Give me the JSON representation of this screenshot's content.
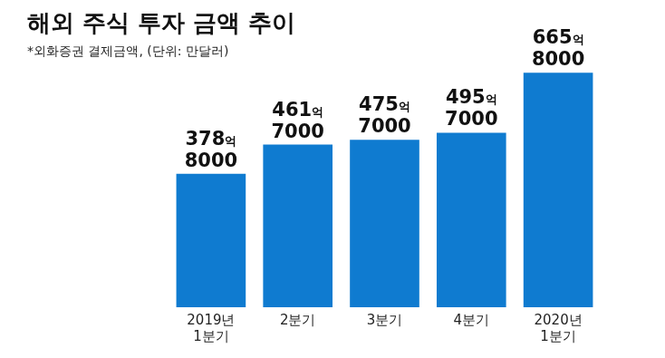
{
  "chart_data": {
    "type": "bar",
    "title": "해외 주식 투자 금액 추이",
    "subtitle": "*외화증권 결제금액, (단위: 만달러)",
    "categories": [
      "2019년 1분기",
      "2분기",
      "3분기",
      "4분기",
      "2020년 1분기"
    ],
    "values": [
      3788000,
      4617000,
      4757000,
      4957000,
      6658000
    ],
    "value_labels": [
      "378억 8000",
      "461억 7000",
      "475억 7000",
      "495억 7000",
      "665억 8000"
    ],
    "color": "#0f7bd0",
    "grid": false,
    "tick_labels": false,
    "data_labels": true
  }
}
